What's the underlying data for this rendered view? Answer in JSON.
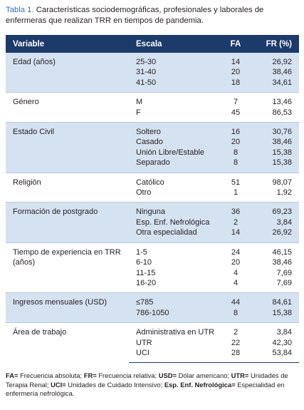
{
  "caption": {
    "label": "Tabla 1.",
    "text": "Características sociodemográficas, profesionales y laborales de enfermeras que realizan TRR en tiempos de pandemia."
  },
  "table": {
    "headers": [
      "Variable",
      "Escala",
      "FA",
      "FR (%)"
    ],
    "groups": [
      {
        "variable": "Edad (años)",
        "rows": [
          [
            "25-30",
            14,
            "26,92"
          ],
          [
            "31-40",
            20,
            "38,46"
          ],
          [
            "41-50",
            18,
            "34,61"
          ]
        ]
      },
      {
        "variable": "Género",
        "rows": [
          [
            "M",
            7,
            "13,46"
          ],
          [
            "F",
            45,
            "86,53"
          ]
        ]
      },
      {
        "variable": "Estado Civil",
        "rows": [
          [
            "Soltero",
            16,
            "30,76"
          ],
          [
            "Casado",
            20,
            "38,46"
          ],
          [
            "Unión Libre/Estable",
            8,
            "15,38"
          ],
          [
            "Separado",
            8,
            "15,38"
          ]
        ]
      },
      {
        "variable": "Religión",
        "rows": [
          [
            "Católico",
            51,
            "98,07"
          ],
          [
            "Otro",
            1,
            "1,92"
          ]
        ]
      },
      {
        "variable": "Formación de postgrado",
        "rows": [
          [
            "Ninguna",
            36,
            "69,23"
          ],
          [
            "Esp. Enf. Nefrológica",
            2,
            "3,84"
          ],
          [
            "Otra especialidad",
            14,
            "26,92"
          ]
        ]
      },
      {
        "variable": "Tiempo de experiencia en TRR (años)",
        "rows": [
          [
            "1-5",
            24,
            "46,15"
          ],
          [
            "6-10",
            20,
            "38,46"
          ],
          [
            "11-15",
            4,
            "7,69"
          ],
          [
            "16-20",
            4,
            "7,69"
          ]
        ]
      },
      {
        "variable": "Ingresos mensuales (USD)",
        "rows": [
          [
            "≤785",
            44,
            "84,61"
          ],
          [
            "786-1050",
            8,
            "15,38"
          ]
        ]
      },
      {
        "variable": "Área de trabajo",
        "rows": [
          [
            "Administrativa en UTR",
            2,
            "3,84"
          ],
          [
            "UTR",
            22,
            "42,30"
          ],
          [
            "UCI",
            28,
            "53,84"
          ]
        ]
      }
    ]
  },
  "footnote": [
    {
      "abbr": "FA=",
      "text": "Frecuencia absoluta;"
    },
    {
      "abbr": "FR=",
      "text": "Frecuencia relativa;"
    },
    {
      "abbr": "USD=",
      "text": "Dólar americano;"
    },
    {
      "abbr": "UTR=",
      "text": "Unidades de Terapia Renal;"
    },
    {
      "abbr": "UCI=",
      "text": "Unidades de Cuidado Intensivo;"
    },
    {
      "abbr": "Esp. Enf. Nefrológica=",
      "text": "Especialidad en enfermería nefrológica."
    }
  ]
}
